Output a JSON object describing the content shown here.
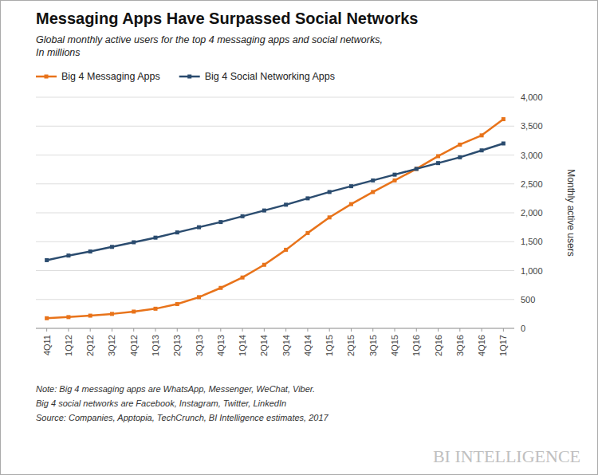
{
  "chart_data": {
    "type": "line",
    "title": "Messaging Apps Have Surpassed Social Networks",
    "subtitle": "Global monthly active users for the top 4 messaging apps and social networks,\nIn millions",
    "y_label": "Monthly active users",
    "notes": [
      "Note: Big 4 messaging apps are WhatsApp, Messenger, WeChat, Viber.",
      "Big 4 social networks are Facebook, Instagram, Twitter, LinkedIn",
      "Source: Companies,  Apptopia, TechCrunch,  BI Intelligence estimates, 2017"
    ],
    "watermark": "BI INTELLIGENCE",
    "categories": [
      "4Q11",
      "1Q12",
      "2Q12",
      "3Q12",
      "4Q12",
      "1Q13",
      "2Q13",
      "3Q13",
      "4Q13",
      "1Q14",
      "2Q14",
      "3Q14",
      "4Q14",
      "1Q15",
      "2Q15",
      "3Q15",
      "4Q15",
      "1Q16",
      "2Q16",
      "3Q16",
      "4Q16",
      "1Q17"
    ],
    "series": [
      {
        "name": "Big 4 Messaging Apps",
        "color": "#E8731A",
        "marker": "square",
        "values": [
          175,
          195,
          220,
          250,
          290,
          340,
          420,
          540,
          700,
          880,
          1100,
          1360,
          1650,
          1920,
          2150,
          2360,
          2560,
          2760,
          2980,
          3180,
          3340,
          3620
        ]
      },
      {
        "name": "Big 4 Social Networking Apps",
        "color": "#2B4C6F",
        "marker": "square",
        "values": [
          1180,
          1260,
          1330,
          1410,
          1490,
          1570,
          1660,
          1750,
          1840,
          1940,
          2040,
          2140,
          2250,
          2360,
          2460,
          2560,
          2660,
          2760,
          2860,
          2960,
          3080,
          3200
        ]
      }
    ],
    "ylim": [
      0,
      4000
    ],
    "yticks": [
      0,
      500,
      {
        "value": 1000,
        "label": "1,000"
      },
      {
        "value": 1500,
        "label": "1,500"
      },
      {
        "value": 2000,
        "label": "2,000"
      },
      {
        "value": 2500,
        "label": "2,500"
      },
      {
        "value": 3000,
        "label": "3,000"
      },
      {
        "value": 3500,
        "label": "3,500"
      },
      {
        "value": 4000,
        "label": "4,000"
      }
    ],
    "grid": true,
    "legend": "top left"
  }
}
